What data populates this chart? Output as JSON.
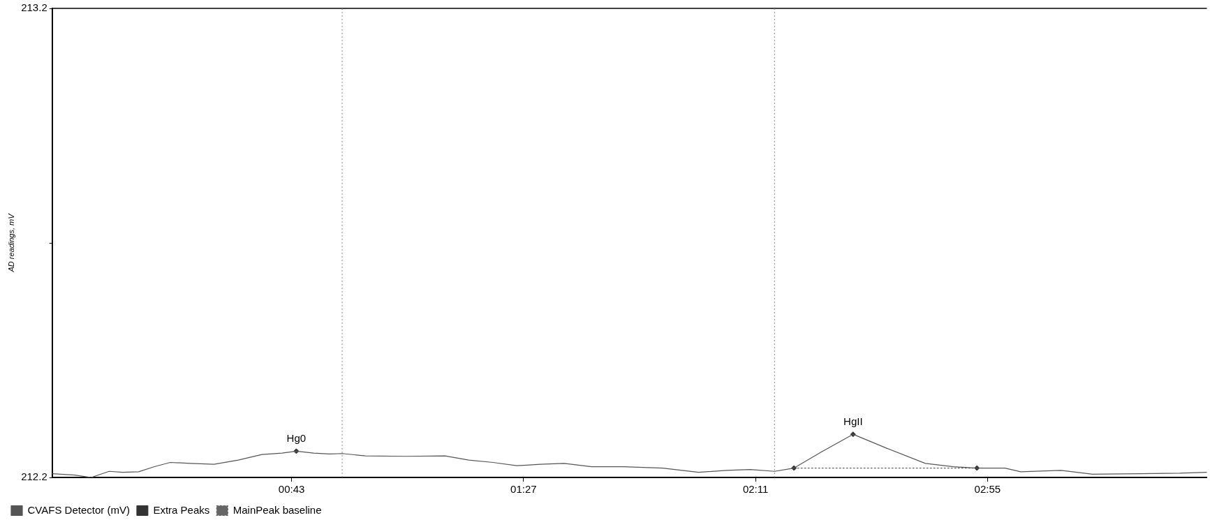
{
  "chart_data": {
    "type": "line",
    "ylabel": "AD readings, mV",
    "xlim": [
      -2.4,
      216.6
    ],
    "xticks": [
      {
        "value": 43,
        "label": "00:43"
      },
      {
        "value": 87,
        "label": "01:27"
      },
      {
        "value": 131,
        "label": "02:11"
      },
      {
        "value": 175,
        "label": "02:55"
      }
    ],
    "ylim": [
      212.2,
      213.2
    ],
    "yticks": [
      212.2,
      {
        "value": 212.7,
        "label": null
      },
      213.2
    ],
    "grid": false,
    "legend": "bottom left",
    "series": [
      {
        "name": "CVAFS Detector (mV)",
        "color": "#555555",
        "marker": "none",
        "line_style": "solid",
        "x": [
          -2.4,
          1.9,
          5.0,
          8.4,
          11.0,
          14.0,
          17.0,
          20.0,
          23.8,
          28.3,
          32.9,
          37.4,
          41.2,
          43.9,
          47.2,
          50.2,
          52.6,
          57.0,
          64.6,
          72.1,
          76.6,
          81.2,
          85.7,
          90.2,
          94.7,
          99.9,
          105.9,
          113.4,
          120.2,
          125.5,
          130.0,
          134.6,
          138.3,
          143.6,
          149.5,
          155.7,
          163.2,
          168.5,
          173.0,
          178.3,
          181.3,
          188.9,
          194.9,
          204.0,
          211.5,
          216.6
        ],
        "values": [
          212.208,
          212.205,
          212.2,
          212.213,
          212.211,
          212.212,
          212.223,
          212.232,
          212.23,
          212.228,
          212.237,
          212.249,
          212.252,
          212.256,
          212.252,
          212.25,
          212.251,
          212.246,
          212.245,
          212.246,
          212.237,
          212.232,
          212.225,
          212.228,
          212.23,
          212.223,
          212.223,
          212.22,
          212.211,
          212.215,
          212.217,
          212.213,
          212.22,
          212.255,
          212.292,
          212.263,
          212.23,
          212.223,
          212.22,
          212.22,
          212.212,
          212.215,
          212.207,
          212.208,
          212.209,
          212.211
        ]
      },
      {
        "name": "Extra Peaks",
        "type": "scatter",
        "color": "#333333",
        "marker": "diamond",
        "x": [
          43.9,
          138.3,
          149.5,
          173.0
        ],
        "values": [
          212.256,
          212.22,
          212.292,
          212.22
        ]
      },
      {
        "name": "MainPeak baseline",
        "type": "line",
        "color": "#666666",
        "marker": "none",
        "line_style": "dotted",
        "x": [
          138.3,
          173.0
        ],
        "values": [
          212.22,
          212.22
        ]
      }
    ],
    "ref_lines": [
      {
        "axis": "x",
        "value": 52.6,
        "label": null,
        "color": "#888888",
        "line_style": "dotted"
      },
      {
        "axis": "x",
        "value": 134.6,
        "label": null,
        "color": "#888888",
        "line_style": "dotted"
      }
    ],
    "annotations": [
      {
        "text": "Hg0",
        "x": 43.9,
        "y": 212.256
      },
      {
        "text": "HgII",
        "x": 149.5,
        "y": 212.292
      }
    ]
  }
}
